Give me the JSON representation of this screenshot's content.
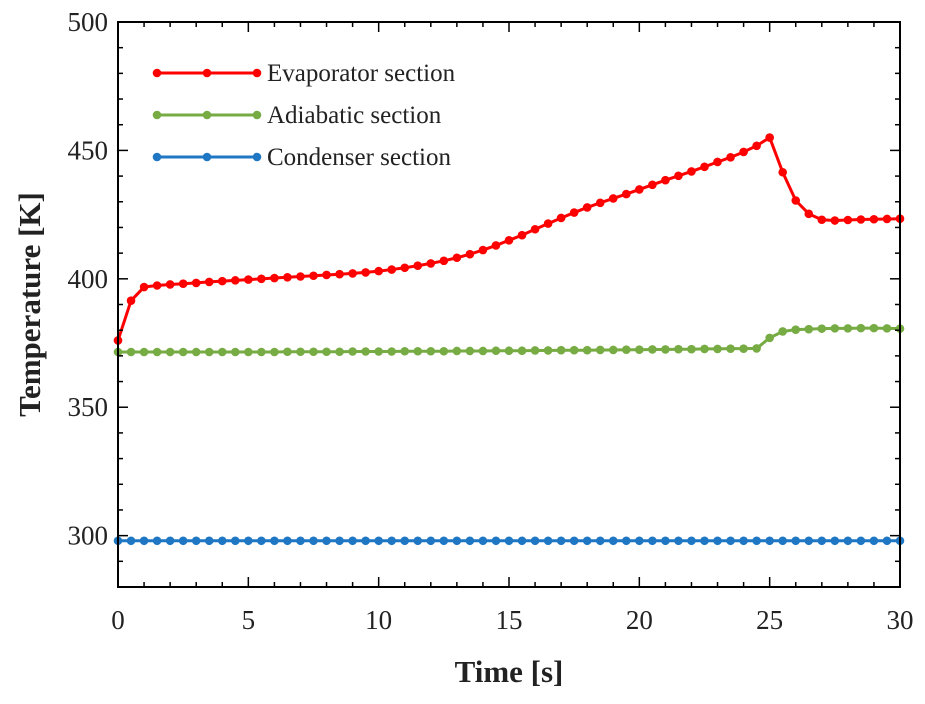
{
  "chart_data": {
    "type": "line",
    "xlabel": "Time [s]",
    "ylabel": "Temperature [K]",
    "xlim": [
      0,
      30
    ],
    "ylim": [
      280,
      500
    ],
    "xticks": [
      0,
      5,
      10,
      15,
      20,
      25,
      30
    ],
    "yticks": [
      300,
      350,
      400,
      450,
      500
    ],
    "legend_position": "top-left",
    "grid": false,
    "series": [
      {
        "name": "Evaporator section",
        "color": "#ff0000",
        "x": [
          0,
          0.5,
          1,
          1.5,
          2,
          2.5,
          3,
          3.5,
          4,
          4.5,
          5,
          5.5,
          6,
          6.5,
          7,
          7.5,
          8,
          8.5,
          9,
          9.5,
          10,
          10.5,
          11,
          11.5,
          12,
          12.5,
          13,
          13.5,
          14,
          14.5,
          15,
          15.5,
          16,
          16.5,
          17,
          17.5,
          18,
          18.5,
          19,
          19.5,
          20,
          20.5,
          21,
          21.5,
          22,
          22.5,
          23,
          23.5,
          24,
          24.5,
          25,
          25.5,
          26,
          26.5,
          27,
          27.5,
          28,
          28.5,
          29,
          29.5,
          30
        ],
        "y": [
          376,
          391.5,
          396.8,
          397.4,
          397.8,
          398.1,
          398.4,
          398.8,
          399.1,
          399.4,
          399.7,
          400,
          400.3,
          400.6,
          400.9,
          401.2,
          401.5,
          401.8,
          402.1,
          402.5,
          403,
          403.6,
          404.3,
          405.1,
          406,
          407,
          408.2,
          409.6,
          411.2,
          413,
          415,
          417,
          419.3,
          421.5,
          423.7,
          425.8,
          427.8,
          429.6,
          431.3,
          433,
          434.8,
          436.6,
          438.4,
          440.1,
          441.8,
          443.6,
          445.5,
          447.3,
          449.4,
          451.8,
          455,
          441.5,
          430.5,
          425.3,
          423,
          422.7,
          422.9,
          423.1,
          423.2,
          423.3,
          423.4
        ]
      },
      {
        "name": "Adiabatic section",
        "color": "#77ab43",
        "x": [
          0,
          0.5,
          1,
          1.5,
          2,
          2.5,
          3,
          3.5,
          4,
          4.5,
          5,
          5.5,
          6,
          6.5,
          7,
          7.5,
          8,
          8.5,
          9,
          9.5,
          10,
          10.5,
          11,
          11.5,
          12,
          12.5,
          13,
          13.5,
          14,
          14.5,
          15,
          15.5,
          16,
          16.5,
          17,
          17.5,
          18,
          18.5,
          19,
          19.5,
          20,
          20.5,
          21,
          21.5,
          22,
          22.5,
          23,
          23.5,
          24,
          24.5,
          25,
          25.5,
          26,
          26.5,
          27,
          27.5,
          28,
          28.5,
          29,
          29.5,
          30
        ],
        "y": [
          371.5,
          371.5,
          371.5,
          371.5,
          371.5,
          371.5,
          371.5,
          371.5,
          371.5,
          371.5,
          371.5,
          371.5,
          371.5,
          371.6,
          371.6,
          371.6,
          371.6,
          371.6,
          371.7,
          371.7,
          371.7,
          371.7,
          371.8,
          371.8,
          371.8,
          371.8,
          371.9,
          371.9,
          371.9,
          372,
          372,
          372,
          372.1,
          372.1,
          372.2,
          372.2,
          372.2,
          372.3,
          372.3,
          372.4,
          372.4,
          372.5,
          372.5,
          372.6,
          372.6,
          372.7,
          372.7,
          372.8,
          372.8,
          372.9,
          377,
          379.5,
          380.2,
          380.4,
          380.6,
          380.7,
          380.7,
          380.8,
          380.8,
          380.7,
          380.6
        ]
      },
      {
        "name": "Condenser section",
        "color": "#1f77c4",
        "x": [
          0,
          0.5,
          1,
          1.5,
          2,
          2.5,
          3,
          3.5,
          4,
          4.5,
          5,
          5.5,
          6,
          6.5,
          7,
          7.5,
          8,
          8.5,
          9,
          9.5,
          10,
          10.5,
          11,
          11.5,
          12,
          12.5,
          13,
          13.5,
          14,
          14.5,
          15,
          15.5,
          16,
          16.5,
          17,
          17.5,
          18,
          18.5,
          19,
          19.5,
          20,
          20.5,
          21,
          21.5,
          22,
          22.5,
          23,
          23.5,
          24,
          24.5,
          25,
          25.5,
          26,
          26.5,
          27,
          27.5,
          28,
          28.5,
          29,
          29.5,
          30
        ],
        "y": [
          298,
          298,
          298,
          298,
          298,
          298,
          298,
          298,
          298,
          298,
          298,
          298,
          298,
          298,
          298,
          298,
          298,
          298,
          298,
          298,
          298,
          298,
          298,
          298,
          298,
          298,
          298,
          298,
          298,
          298,
          298,
          298,
          298,
          298,
          298,
          298,
          298,
          298,
          298,
          298,
          298,
          298,
          298,
          298,
          298,
          298,
          298,
          298,
          298,
          298,
          298,
          298,
          298,
          298,
          298,
          298,
          298,
          298,
          298,
          298,
          298
        ]
      }
    ]
  }
}
